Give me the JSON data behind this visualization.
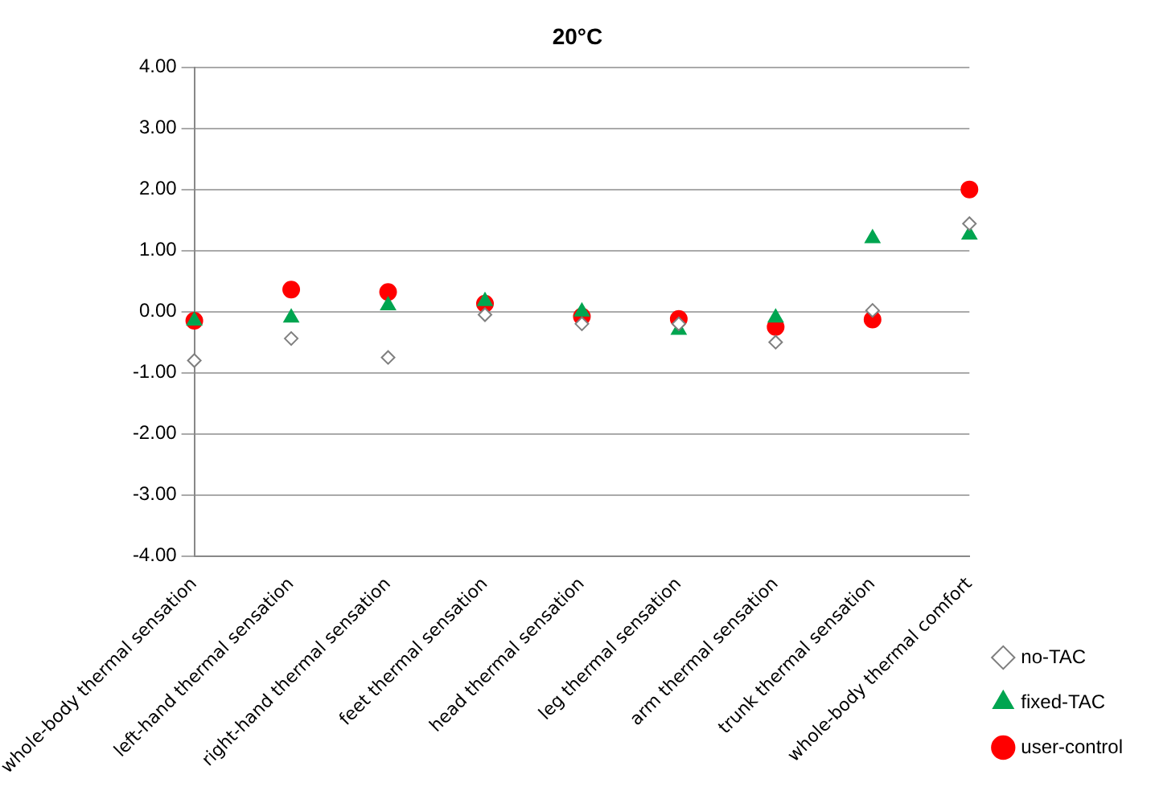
{
  "chart_data": {
    "type": "scatter",
    "title": "20°C",
    "categories": [
      "whole-body thermal sensation",
      "left-hand thermal sensation",
      "right-hand thermal sensation",
      "feet thermal sensation",
      "head thermal sensation",
      "leg thermal sensation",
      "arm thermal sensation",
      "trunk thermal sensation",
      "whole-body thermal comfort"
    ],
    "series": [
      {
        "name": "no-TAC",
        "color": "#7f7f7f",
        "marker": "diamond",
        "values": [
          -0.8,
          -0.44,
          -0.75,
          -0.05,
          -0.2,
          -0.2,
          -0.5,
          0.02,
          1.44
        ]
      },
      {
        "name": "fixed-TAC",
        "color": "#00a550",
        "marker": "triangle",
        "values": [
          -0.15,
          -0.1,
          0.1,
          0.17,
          0.0,
          -0.3,
          -0.1,
          1.2,
          1.26
        ]
      },
      {
        "name": "user-control",
        "color": "#ff0000",
        "marker": "circle",
        "values": [
          -0.15,
          0.36,
          0.32,
          0.13,
          -0.08,
          -0.12,
          -0.25,
          -0.13,
          2.0
        ]
      }
    ],
    "ylim": [
      -4,
      4
    ],
    "yticks": [
      {
        "value": -4,
        "label": "-4.00"
      },
      {
        "value": -3,
        "label": "-3.00"
      },
      {
        "value": -2,
        "label": "-2.00"
      },
      {
        "value": -1,
        "label": "-1.00"
      },
      {
        "value": 0,
        "label": "0.00"
      },
      {
        "value": 1,
        "label": "1.00"
      },
      {
        "value": 2,
        "label": "2.00"
      },
      {
        "value": 3,
        "label": "3.00"
      },
      {
        "value": 4,
        "label": "4.00"
      }
    ],
    "grid": "y",
    "legend": "right"
  }
}
